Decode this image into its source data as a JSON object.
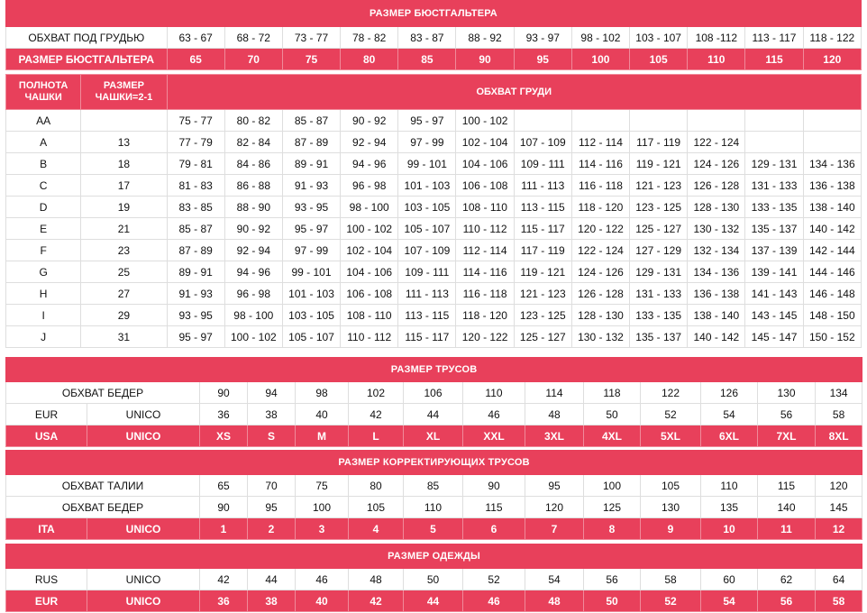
{
  "bra": {
    "title": "РАЗМЕР БЮСТГАЛЬТЕРА",
    "underbust_label": "ОБХВАТ ПОД ГРУДЬЮ",
    "underbust": [
      "63 - 67",
      "68 - 72",
      "73 - 77",
      "78 - 82",
      "83 - 87",
      "88 - 92",
      "93 - 97",
      "98 - 102",
      "103 - 107",
      "108 -112",
      "113 - 117",
      "118 - 122"
    ],
    "size_label": "РАЗМЕР БЮСТГАЛЬТЕРА",
    "sizes": [
      "65",
      "70",
      "75",
      "80",
      "85",
      "90",
      "95",
      "100",
      "105",
      "110",
      "115",
      "120"
    ],
    "cup_fullness_label": "ПОЛНОТА ЧАШКИ",
    "cup_size_label": "РАЗМЕР ЧАШКИ=2-1",
    "bust_label": "ОБХВАТ ГРУДИ",
    "rows": [
      {
        "cup": "AA",
        "diff": "",
        "values": [
          "75 - 77",
          "80 - 82",
          "85 - 87",
          "90 - 92",
          "95 - 97",
          "100 - 102",
          "",
          "",
          "",
          "",
          "",
          ""
        ]
      },
      {
        "cup": "A",
        "diff": "13",
        "values": [
          "77 - 79",
          "82 - 84",
          "87 - 89",
          "92 - 94",
          "97 - 99",
          "102 - 104",
          "107 - 109",
          "112 - 114",
          "117 - 119",
          "122 - 124",
          "",
          ""
        ]
      },
      {
        "cup": "B",
        "diff": "18",
        "values": [
          "79 - 81",
          "84 - 86",
          "89 - 91",
          "94 - 96",
          "99 - 101",
          "104 - 106",
          "109 - 111",
          "114 - 116",
          "119 - 121",
          "124 - 126",
          "129 - 131",
          "134 - 136"
        ]
      },
      {
        "cup": "C",
        "diff": "17",
        "values": [
          "81 - 83",
          "86 - 88",
          "91 - 93",
          "96 - 98",
          "101 - 103",
          "106 - 108",
          "111 - 113",
          "116 - 118",
          "121 - 123",
          "126 - 128",
          "131 - 133",
          "136 - 138"
        ]
      },
      {
        "cup": "D",
        "diff": "19",
        "values": [
          "83 - 85",
          "88 - 90",
          "93 - 95",
          "98 - 100",
          "103 - 105",
          "108 - 110",
          "113 - 115",
          "118 - 120",
          "123 - 125",
          "128 - 130",
          "133 - 135",
          "138 - 140"
        ]
      },
      {
        "cup": "E",
        "diff": "21",
        "values": [
          "85 - 87",
          "90 - 92",
          "95 - 97",
          "100 - 102",
          "105 - 107",
          "110 - 112",
          "115 - 117",
          "120 - 122",
          "125 - 127",
          "130 - 132",
          "135 - 137",
          "140 - 142"
        ]
      },
      {
        "cup": "F",
        "diff": "23",
        "values": [
          "87 - 89",
          "92 - 94",
          "97 - 99",
          "102 - 104",
          "107 - 109",
          "112 - 114",
          "117 - 119",
          "122 - 124",
          "127 - 129",
          "132 - 134",
          "137 - 139",
          "142 - 144"
        ]
      },
      {
        "cup": "G",
        "diff": "25",
        "values": [
          "89 - 91",
          "94 - 96",
          "99 - 101",
          "104 - 106",
          "109 - 111",
          "114 - 116",
          "119 - 121",
          "124 - 126",
          "129 - 131",
          "134 - 136",
          "139 - 141",
          "144 - 146"
        ]
      },
      {
        "cup": "H",
        "diff": "27",
        "values": [
          "91 - 93",
          "96 - 98",
          "101 - 103",
          "106 - 108",
          "111 - 113",
          "116 - 118",
          "121 - 123",
          "126 - 128",
          "131 - 133",
          "136 - 138",
          "141 - 143",
          "146 - 148"
        ]
      },
      {
        "cup": "I",
        "diff": "29",
        "values": [
          "93 - 95",
          "98 - 100",
          "103 - 105",
          "108 - 110",
          "113 - 115",
          "118 - 120",
          "123 - 125",
          "128 - 130",
          "133 - 135",
          "138 - 140",
          "143 - 145",
          "148 - 150"
        ]
      },
      {
        "cup": "J",
        "diff": "31",
        "values": [
          "95 - 97",
          "100 - 102",
          "105 - 107",
          "110 - 112",
          "115 - 117",
          "120 - 122",
          "125 - 127",
          "130 - 132",
          "135 - 137",
          "140 - 142",
          "145 - 147",
          "150 - 152"
        ]
      }
    ]
  },
  "briefs": {
    "title": "РАЗМЕР ТРУСОВ",
    "hips_label": "ОБХВАТ БЕДЕР",
    "hips": [
      "90",
      "94",
      "98",
      "102",
      "106",
      "110",
      "114",
      "118",
      "122",
      "126",
      "130",
      "134"
    ],
    "eur_label": "EUR",
    "eur_unico": "UNICO",
    "eur": [
      "36",
      "38",
      "40",
      "42",
      "44",
      "46",
      "48",
      "50",
      "52",
      "54",
      "56",
      "58"
    ],
    "usa_label": "USA",
    "usa_unico": "UNICO",
    "usa": [
      "XS",
      "S",
      "M",
      "L",
      "XL",
      "XXL",
      "3XL",
      "4XL",
      "5XL",
      "6XL",
      "7XL",
      "8XL"
    ]
  },
  "shapewear": {
    "title": "РАЗМЕР КОРРЕКТИРУЮЩИХ ТРУСОВ",
    "waist_label": "ОБХВАТ ТАЛИИ",
    "waist": [
      "65",
      "70",
      "75",
      "80",
      "85",
      "90",
      "95",
      "100",
      "105",
      "110",
      "115",
      "120"
    ],
    "hips_label": "ОБХВАТ БЕДЕР",
    "hips": [
      "90",
      "95",
      "100",
      "105",
      "110",
      "115",
      "120",
      "125",
      "130",
      "135",
      "140",
      "145"
    ],
    "ita_label": "ITA",
    "ita_unico": "UNICO",
    "ita": [
      "1",
      "2",
      "3",
      "4",
      "5",
      "6",
      "7",
      "8",
      "9",
      "10",
      "11",
      "12"
    ]
  },
  "clothing": {
    "title": "РАЗМЕР ОДЕЖДЫ",
    "rus_label": "RUS",
    "rus_unico": "UNICO",
    "rus": [
      "42",
      "44",
      "46",
      "48",
      "50",
      "52",
      "54",
      "56",
      "58",
      "60",
      "62",
      "64"
    ],
    "eur_label": "EUR",
    "eur_unico": "UNICO",
    "eur": [
      "36",
      "38",
      "40",
      "42",
      "44",
      "46",
      "48",
      "50",
      "52",
      "54",
      "56",
      "58"
    ]
  },
  "colors": {
    "accent": "#e8405b",
    "grid": "#dedede"
  }
}
